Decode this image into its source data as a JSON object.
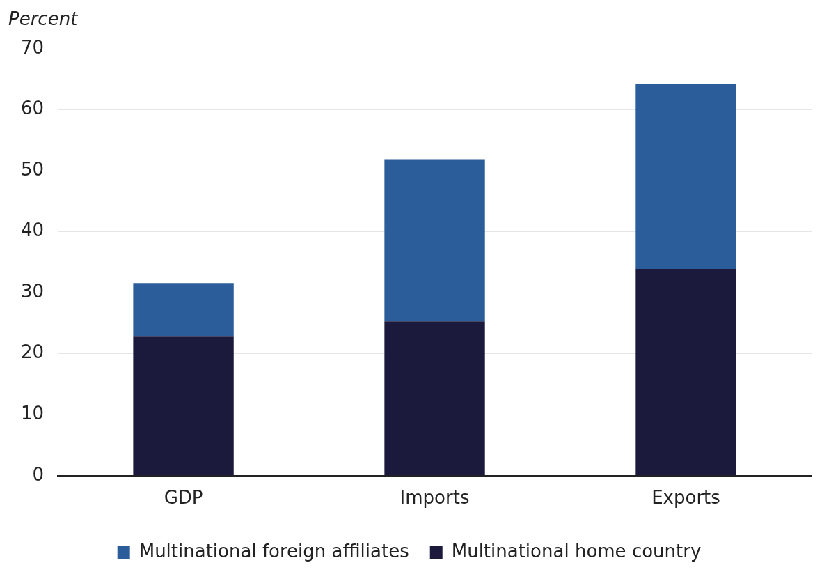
{
  "chart_data": {
    "type": "bar",
    "ylabel": "Percent",
    "categories": [
      "GDP",
      "Imports",
      "Exports"
    ],
    "stacked": true,
    "series": [
      {
        "name": "Multinational home country",
        "color": "#1b1a3d",
        "values": [
          22.9,
          25.3,
          33.9
        ]
      },
      {
        "name": "Multinational foreign affiliates",
        "color": "#2a5d9a",
        "values": [
          8.7,
          26.6,
          30.3
        ]
      }
    ],
    "ylim": [
      0,
      70
    ],
    "yticks": [
      0,
      10,
      20,
      30,
      40,
      50,
      60,
      70
    ],
    "grid": "y",
    "legend": "bottom"
  }
}
